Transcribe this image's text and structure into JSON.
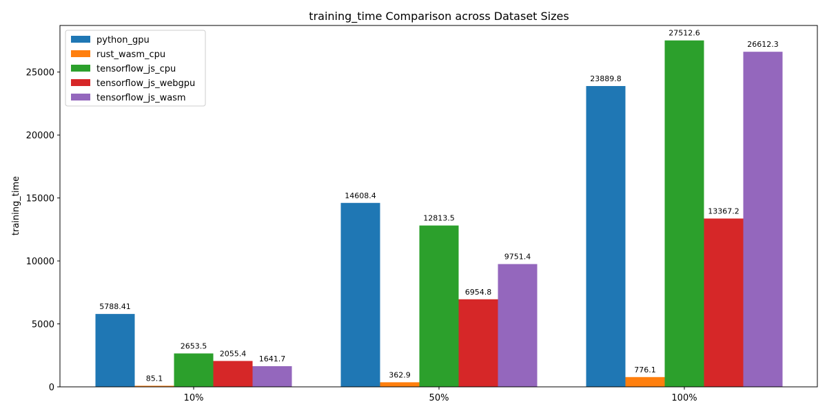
{
  "chart_data": {
    "type": "bar",
    "title": "training_time Comparison across Dataset Sizes",
    "xlabel": "",
    "ylabel": "training_time",
    "categories": [
      "10%",
      "50%",
      "100%"
    ],
    "ylim": [
      0,
      28700
    ],
    "yticks": [
      0,
      5000,
      10000,
      15000,
      20000,
      25000
    ],
    "ytick_labels": [
      "0",
      "5000",
      "10000",
      "15000",
      "20000",
      "25000"
    ],
    "grid": false,
    "legend_position": "top-left",
    "series": [
      {
        "name": "python_gpu",
        "color": "#1f77b4",
        "values": [
          5788.41,
          14608.4,
          23889.8
        ],
        "labels": [
          "5788.41",
          "14608.4",
          "23889.8"
        ]
      },
      {
        "name": "rust_wasm_cpu",
        "color": "#ff7f0e",
        "values": [
          85.1,
          362.9,
          776.1
        ],
        "labels": [
          "85.1",
          "362.9",
          "776.1"
        ]
      },
      {
        "name": "tensorflow_js_cpu",
        "color": "#2ca02c",
        "values": [
          2653.5,
          12813.5,
          27512.6
        ],
        "labels": [
          "2653.5",
          "12813.5",
          "27512.6"
        ]
      },
      {
        "name": "tensorflow_js_webgpu",
        "color": "#d62728",
        "values": [
          2055.4,
          6954.8,
          13367.2
        ],
        "labels": [
          "2055.4",
          "6954.8",
          "13367.2"
        ]
      },
      {
        "name": "tensorflow_js_wasm",
        "color": "#9467bd",
        "values": [
          1641.7,
          9751.4,
          26612.3
        ],
        "labels": [
          "1641.7",
          "9751.4",
          "26612.3"
        ]
      }
    ]
  }
}
